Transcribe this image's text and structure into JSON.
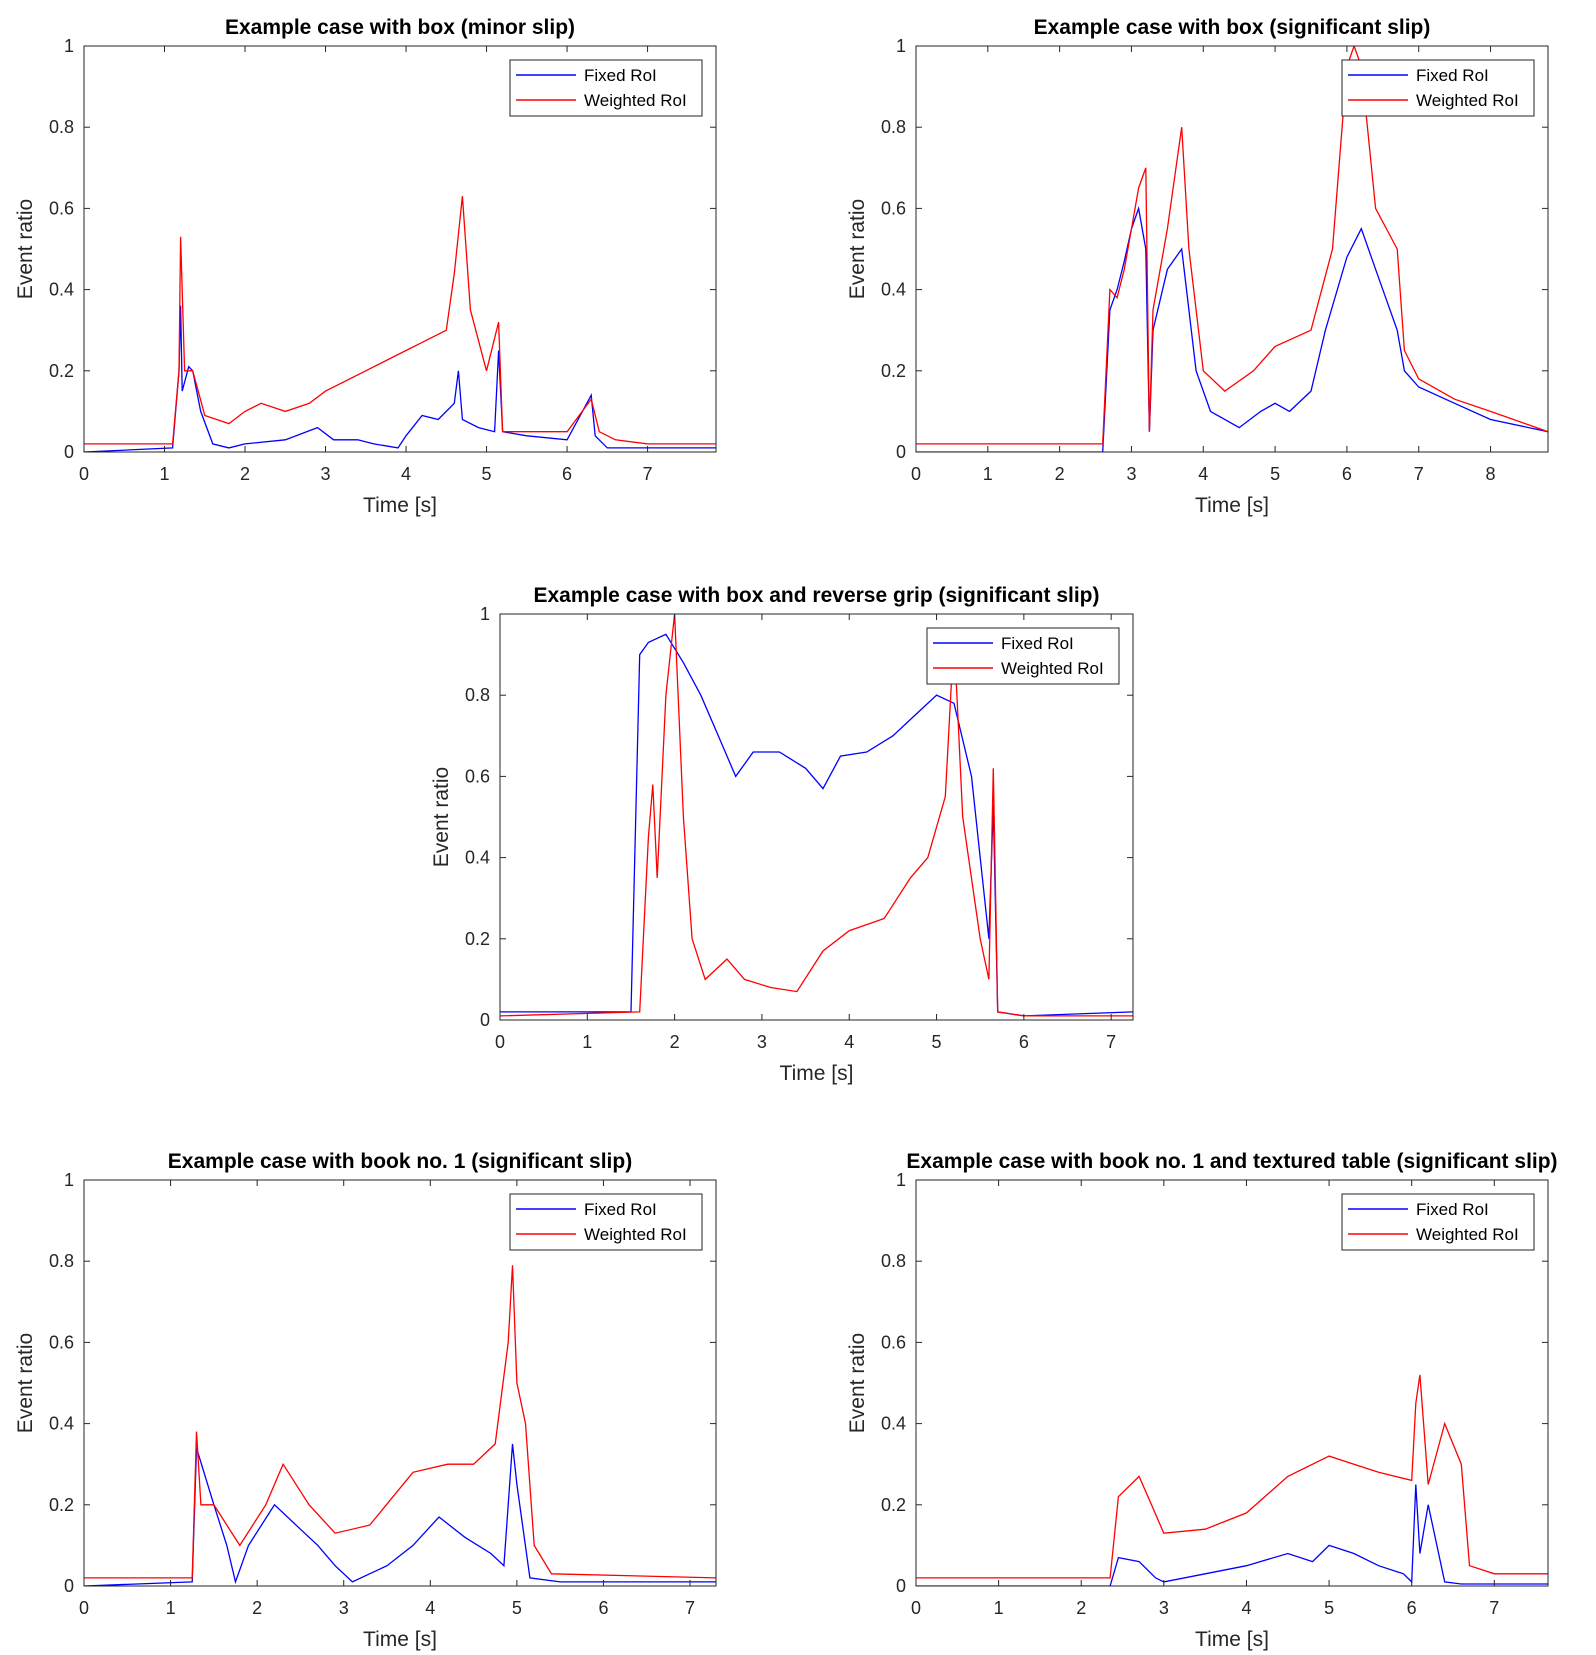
{
  "colors": {
    "fixed": "#0000ff",
    "weighted": "#ff0000",
    "axis": "#262626"
  },
  "chart_data": [
    {
      "type": "line",
      "title": "Example case with box (minor slip)",
      "xlabel": "Time [s]",
      "ylabel": "Event ratio",
      "xlim": [
        0,
        7.85
      ],
      "ylim": [
        0,
        1
      ],
      "xticks": [
        0,
        1,
        2,
        3,
        4,
        5,
        6,
        7
      ],
      "yticks": [
        0,
        0.2,
        0.4,
        0.6,
        0.8,
        1
      ],
      "legend": "top-right",
      "series": [
        {
          "name": "Fixed RoI",
          "color": "#0000ff",
          "x": [
            0,
            1.1,
            1.18,
            1.2,
            1.22,
            1.3,
            1.35,
            1.45,
            1.6,
            1.8,
            2.0,
            2.5,
            2.9,
            3.1,
            3.4,
            3.6,
            3.9,
            4.0,
            4.2,
            4.4,
            4.6,
            4.65,
            4.7,
            4.9,
            5.1,
            5.15,
            5.2,
            5.5,
            6.0,
            6.3,
            6.35,
            6.5,
            7.0,
            7.85
          ],
          "y": [
            0,
            0.01,
            0.2,
            0.36,
            0.15,
            0.21,
            0.2,
            0.1,
            0.02,
            0.01,
            0.02,
            0.03,
            0.06,
            0.03,
            0.03,
            0.02,
            0.01,
            0.04,
            0.09,
            0.08,
            0.12,
            0.2,
            0.08,
            0.06,
            0.05,
            0.25,
            0.05,
            0.04,
            0.03,
            0.14,
            0.04,
            0.01,
            0.01,
            0.01
          ]
        },
        {
          "name": "Weighted RoI",
          "color": "#ff0000",
          "x": [
            0,
            1.1,
            1.18,
            1.2,
            1.25,
            1.35,
            1.5,
            1.8,
            2.0,
            2.2,
            2.5,
            2.8,
            3.0,
            3.5,
            4.0,
            4.2,
            4.5,
            4.6,
            4.7,
            4.8,
            5.0,
            5.15,
            5.2,
            5.5,
            6.0,
            6.3,
            6.4,
            6.6,
            7.0,
            7.85
          ],
          "y": [
            0.02,
            0.02,
            0.2,
            0.53,
            0.2,
            0.2,
            0.09,
            0.07,
            0.1,
            0.12,
            0.1,
            0.12,
            0.15,
            0.2,
            0.25,
            0.27,
            0.3,
            0.44,
            0.63,
            0.35,
            0.2,
            0.32,
            0.05,
            0.05,
            0.05,
            0.13,
            0.05,
            0.03,
            0.02,
            0.02
          ]
        }
      ]
    },
    {
      "type": "line",
      "title": "Example case with box (significant slip)",
      "xlabel": "Time [s]",
      "ylabel": "Event ratio",
      "xlim": [
        0,
        8.8
      ],
      "ylim": [
        0,
        1
      ],
      "xticks": [
        0,
        1,
        2,
        3,
        4,
        5,
        6,
        7,
        8
      ],
      "yticks": [
        0,
        0.2,
        0.4,
        0.6,
        0.8,
        1
      ],
      "legend": "top-right",
      "series": [
        {
          "name": "Fixed RoI",
          "color": "#0000ff",
          "x": [
            0,
            2.6,
            2.7,
            2.8,
            2.9,
            3.0,
            3.1,
            3.2,
            3.25,
            3.3,
            3.5,
            3.7,
            3.9,
            4.1,
            4.5,
            4.8,
            5.0,
            5.2,
            5.5,
            5.7,
            6.0,
            6.2,
            6.4,
            6.7,
            6.8,
            7.0,
            7.5,
            8.0,
            8.8
          ],
          "y": [
            0,
            0,
            0.35,
            0.4,
            0.47,
            0.55,
            0.6,
            0.5,
            0.05,
            0.3,
            0.45,
            0.5,
            0.2,
            0.1,
            0.06,
            0.1,
            0.12,
            0.1,
            0.15,
            0.3,
            0.48,
            0.55,
            0.45,
            0.3,
            0.2,
            0.16,
            0.12,
            0.08,
            0.05
          ]
        },
        {
          "name": "Weighted RoI",
          "color": "#ff0000",
          "x": [
            0,
            2.6,
            2.7,
            2.8,
            2.9,
            3.0,
            3.1,
            3.2,
            3.25,
            3.3,
            3.5,
            3.7,
            3.8,
            4.0,
            4.3,
            4.7,
            5.0,
            5.5,
            5.8,
            6.0,
            6.1,
            6.2,
            6.4,
            6.7,
            6.8,
            7.0,
            7.5,
            8.0,
            8.8
          ],
          "y": [
            0.02,
            0.02,
            0.4,
            0.38,
            0.45,
            0.55,
            0.65,
            0.7,
            0.05,
            0.35,
            0.55,
            0.8,
            0.5,
            0.2,
            0.15,
            0.2,
            0.26,
            0.3,
            0.5,
            0.95,
            1.0,
            0.95,
            0.6,
            0.5,
            0.25,
            0.18,
            0.13,
            0.1,
            0.05
          ]
        }
      ]
    },
    {
      "type": "line",
      "title": "Example case with box and reverse grip (significant slip)",
      "xlabel": "Time [s]",
      "ylabel": "Event ratio",
      "xlim": [
        0,
        7.25
      ],
      "ylim": [
        0,
        1
      ],
      "xticks": [
        0,
        1,
        2,
        3,
        4,
        5,
        6,
        7
      ],
      "yticks": [
        0,
        0.2,
        0.4,
        0.6,
        0.8,
        1
      ],
      "legend": "top-right",
      "series": [
        {
          "name": "Fixed RoI",
          "color": "#0000ff",
          "x": [
            0,
            1.5,
            1.6,
            1.7,
            1.9,
            2.1,
            2.3,
            2.5,
            2.7,
            2.9,
            3.2,
            3.5,
            3.7,
            3.9,
            4.2,
            4.5,
            4.8,
            5.0,
            5.2,
            5.4,
            5.6,
            5.65,
            5.7,
            6.0,
            7.25
          ],
          "y": [
            0.02,
            0.02,
            0.9,
            0.93,
            0.95,
            0.88,
            0.8,
            0.7,
            0.6,
            0.66,
            0.66,
            0.62,
            0.57,
            0.65,
            0.66,
            0.7,
            0.76,
            0.8,
            0.78,
            0.6,
            0.2,
            0.53,
            0.02,
            0.01,
            0.02
          ]
        },
        {
          "name": "Weighted RoI",
          "color": "#ff0000",
          "x": [
            0,
            1.6,
            1.7,
            1.75,
            1.8,
            1.9,
            2.0,
            2.1,
            2.2,
            2.35,
            2.6,
            2.8,
            3.1,
            3.4,
            3.7,
            4.0,
            4.4,
            4.7,
            4.9,
            5.1,
            5.2,
            5.3,
            5.5,
            5.6,
            5.65,
            5.7,
            6.0,
            7.25
          ],
          "y": [
            0.01,
            0.02,
            0.45,
            0.58,
            0.35,
            0.8,
            1.0,
            0.5,
            0.2,
            0.1,
            0.15,
            0.1,
            0.08,
            0.07,
            0.17,
            0.22,
            0.25,
            0.35,
            0.4,
            0.55,
            0.95,
            0.5,
            0.2,
            0.1,
            0.62,
            0.02,
            0.01,
            0.01
          ]
        }
      ]
    },
    {
      "type": "line",
      "title": "Example case with book no. 1 (significant slip)",
      "xlabel": "Time [s]",
      "ylabel": "Event ratio",
      "xlim": [
        0,
        7.3
      ],
      "ylim": [
        0,
        1
      ],
      "xticks": [
        0,
        1,
        2,
        3,
        4,
        5,
        6,
        7
      ],
      "yticks": [
        0,
        0.2,
        0.4,
        0.6,
        0.8,
        1
      ],
      "legend": "top-right",
      "series": [
        {
          "name": "Fixed RoI",
          "color": "#0000ff",
          "x": [
            0,
            1.25,
            1.3,
            1.5,
            1.65,
            1.75,
            1.9,
            2.2,
            2.5,
            2.7,
            2.9,
            3.1,
            3.5,
            3.8,
            4.1,
            4.4,
            4.7,
            4.85,
            4.95,
            5.0,
            5.15,
            5.5,
            7.3
          ],
          "y": [
            0,
            0.01,
            0.34,
            0.2,
            0.1,
            0.01,
            0.1,
            0.2,
            0.14,
            0.1,
            0.05,
            0.01,
            0.05,
            0.1,
            0.17,
            0.12,
            0.08,
            0.05,
            0.35,
            0.25,
            0.02,
            0.01,
            0.01
          ]
        },
        {
          "name": "Weighted RoI",
          "color": "#ff0000",
          "x": [
            0,
            1.25,
            1.3,
            1.35,
            1.5,
            1.8,
            2.1,
            2.3,
            2.6,
            2.9,
            3.3,
            3.8,
            4.2,
            4.5,
            4.75,
            4.9,
            4.95,
            5.0,
            5.1,
            5.2,
            5.4,
            7.3
          ],
          "y": [
            0.02,
            0.02,
            0.38,
            0.2,
            0.2,
            0.1,
            0.2,
            0.3,
            0.2,
            0.13,
            0.15,
            0.28,
            0.3,
            0.3,
            0.35,
            0.6,
            0.79,
            0.5,
            0.4,
            0.1,
            0.03,
            0.02
          ]
        }
      ]
    },
    {
      "type": "line",
      "title": "Example case with book no. 1 and textured table (significant slip)",
      "xlabel": "Time [s]",
      "ylabel": "Event ratio",
      "xlim": [
        0,
        7.65
      ],
      "ylim": [
        0,
        1
      ],
      "xticks": [
        0,
        1,
        2,
        3,
        4,
        5,
        6,
        7
      ],
      "yticks": [
        0,
        0.2,
        0.4,
        0.6,
        0.8,
        1
      ],
      "legend": "top-right",
      "series": [
        {
          "name": "Fixed RoI",
          "color": "#0000ff",
          "x": [
            0,
            2.35,
            2.45,
            2.7,
            2.9,
            3.0,
            3.5,
            4.0,
            4.5,
            4.8,
            5.0,
            5.3,
            5.6,
            5.9,
            6.0,
            6.05,
            6.1,
            6.2,
            6.4,
            6.6,
            7.0,
            7.65
          ],
          "y": [
            0,
            0,
            0.07,
            0.06,
            0.02,
            0.01,
            0.03,
            0.05,
            0.08,
            0.06,
            0.1,
            0.08,
            0.05,
            0.03,
            0.01,
            0.25,
            0.08,
            0.2,
            0.01,
            0.005,
            0.005,
            0.005
          ]
        },
        {
          "name": "Weighted RoI",
          "color": "#ff0000",
          "x": [
            0,
            2.35,
            2.45,
            2.7,
            2.85,
            3.0,
            3.5,
            4.0,
            4.5,
            5.0,
            5.3,
            5.6,
            6.0,
            6.05,
            6.1,
            6.2,
            6.4,
            6.6,
            6.7,
            7.0,
            7.65
          ],
          "y": [
            0.02,
            0.02,
            0.22,
            0.27,
            0.2,
            0.13,
            0.14,
            0.18,
            0.27,
            0.32,
            0.3,
            0.28,
            0.26,
            0.45,
            0.52,
            0.25,
            0.4,
            0.3,
            0.05,
            0.03,
            0.03
          ]
        }
      ]
    }
  ]
}
